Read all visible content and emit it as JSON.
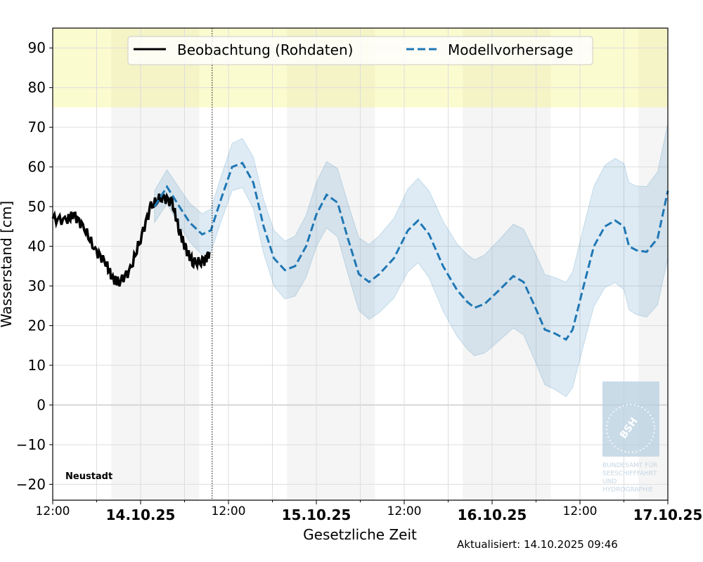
{
  "chart_data": {
    "type": "line",
    "title": "",
    "station": "Neustadt",
    "xlabel": "Gesetzliche Zeit",
    "ylabel": "Wasserstand [cm]",
    "ylim": [
      -24,
      95
    ],
    "x_unit": "hours since 13.10.2025 12:00",
    "xlim": [
      0,
      84
    ],
    "grid": true,
    "y_ticks": [
      -20,
      -10,
      0,
      10,
      20,
      30,
      40,
      50,
      60,
      70,
      80,
      90
    ],
    "y_tick_labels": [
      "−20",
      "−10",
      "0",
      "10",
      "20",
      "30",
      "40",
      "50",
      "60",
      "70",
      "80",
      "90"
    ],
    "x_ticks": [
      {
        "h": 0,
        "label": "12:00",
        "bold": false
      },
      {
        "h": 12,
        "label": "14.10.25",
        "bold": true
      },
      {
        "h": 24,
        "label": "12:00",
        "bold": false
      },
      {
        "h": 36,
        "label": "15.10.25",
        "bold": true
      },
      {
        "h": 48,
        "label": "12:00",
        "bold": false
      },
      {
        "h": 60,
        "label": "16.10.25",
        "bold": true
      },
      {
        "h": 72,
        "label": "12:00",
        "bold": false
      },
      {
        "h": 84,
        "label": "17.10.25",
        "bold": true
      }
    ],
    "minor_ticks": [
      6,
      18,
      30,
      42,
      54,
      66,
      78
    ],
    "night_periods": [
      [
        8,
        20
      ],
      [
        32,
        44
      ],
      [
        56,
        68
      ],
      [
        80,
        84
      ]
    ],
    "warning_band": {
      "from": 75,
      "color": "#fafac8"
    },
    "now_h": 21.77,
    "legend": {
      "position": "top-center",
      "entries": [
        "Beobachtung (Rohdaten)",
        "Modellvorhersage"
      ]
    },
    "series": [
      {
        "name": "Beobachtung (Rohdaten)",
        "color": "#000000",
        "style": "solid",
        "h": [
          0,
          1.9,
          2.9,
          4.3,
          5.8,
          7.2,
          8.2,
          9.1,
          10.6,
          12,
          13.4,
          14.9,
          16.3,
          17.3,
          18.2,
          19.2,
          20.6,
          21.4
        ],
        "values": [
          47,
          46.5,
          48,
          44.6,
          39,
          36,
          31.7,
          31,
          34,
          42,
          50,
          52.6,
          51,
          44,
          39,
          36,
          36,
          38.5
        ]
      },
      {
        "name": "Modellvorhersage",
        "color": "#1f77b4",
        "style": "dashed",
        "h": [
          13.9,
          15.6,
          17.3,
          18.7,
          20.4,
          21.6,
          23,
          24.5,
          25.9,
          27.4,
          28.8,
          30.2,
          31.7,
          33.1,
          34.6,
          36,
          37.4,
          38.9,
          40.3,
          41.8,
          43.2,
          44.6,
          46.6,
          48.5,
          49.9,
          51.4,
          53.3,
          55.2,
          56.6,
          57.6,
          59,
          61,
          62.9,
          64.3,
          65.8,
          67.2,
          68.6,
          70.1,
          71,
          72.5,
          73.9,
          75.4,
          76.8,
          78,
          78.7,
          79.7,
          81.1,
          82.6,
          84
        ],
        "values": [
          50,
          55,
          50,
          46,
          43,
          44,
          52,
          60,
          61,
          56,
          45,
          37,
          34,
          35,
          40,
          48,
          53,
          51,
          42,
          33,
          31,
          33,
          37,
          44,
          46.5,
          43,
          35,
          29,
          26,
          24.5,
          25.5,
          29,
          32.5,
          31,
          25,
          19,
          18,
          16.5,
          19,
          30,
          40,
          45,
          46.5,
          45,
          40,
          39,
          38.6,
          42,
          54
        ]
      }
    ],
    "uncertainty_band": {
      "name": "Modellvorhersage Unsicherheit",
      "color": "#1f77b4",
      "spread_start": 4,
      "spread_end": 17
    }
  },
  "footer": {
    "updated": "Aktualisiert: 14.10.2025 09:46"
  },
  "logo": {
    "text": "BSH",
    "caption": [
      "BUNDESAMT FÜR",
      "SEESCHIFFFAHRT",
      "UND",
      "HYDROGRAPHIE"
    ]
  }
}
